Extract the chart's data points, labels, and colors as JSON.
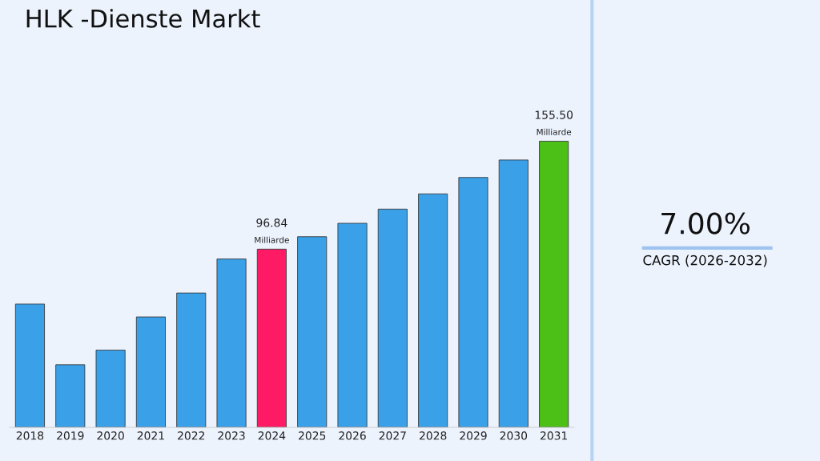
{
  "chart_data": {
    "type": "bar",
    "title": "HLK -Dienste Markt",
    "categories": [
      "2018",
      "2019",
      "2020",
      "2021",
      "2022",
      "2023",
      "2024",
      "2025",
      "2026",
      "2027",
      "2028",
      "2029",
      "2030",
      "2031"
    ],
    "values": [
      67,
      34,
      42,
      60,
      73,
      91.5,
      96.84,
      103.6,
      110.9,
      118.6,
      126.9,
      135.8,
      145.3,
      155.5
    ],
    "colors": [
      "#3aa0e8",
      "#3aa0e8",
      "#3aa0e8",
      "#3aa0e8",
      "#3aa0e8",
      "#3aa0e8",
      "#ff1a66",
      "#3aa0e8",
      "#3aa0e8",
      "#3aa0e8",
      "#3aa0e8",
      "#3aa0e8",
      "#3aa0e8",
      "#4cc016"
    ],
    "value_labels": [
      null,
      null,
      null,
      null,
      null,
      null,
      "96.84\nMilliarde",
      null,
      null,
      null,
      null,
      null,
      null,
      "155.50\nMilliarde"
    ],
    "annotations": [
      "7.00%",
      "CAGR (2026-2032)"
    ],
    "grid": false,
    "legend": false,
    "tick_labels": "x"
  }
}
